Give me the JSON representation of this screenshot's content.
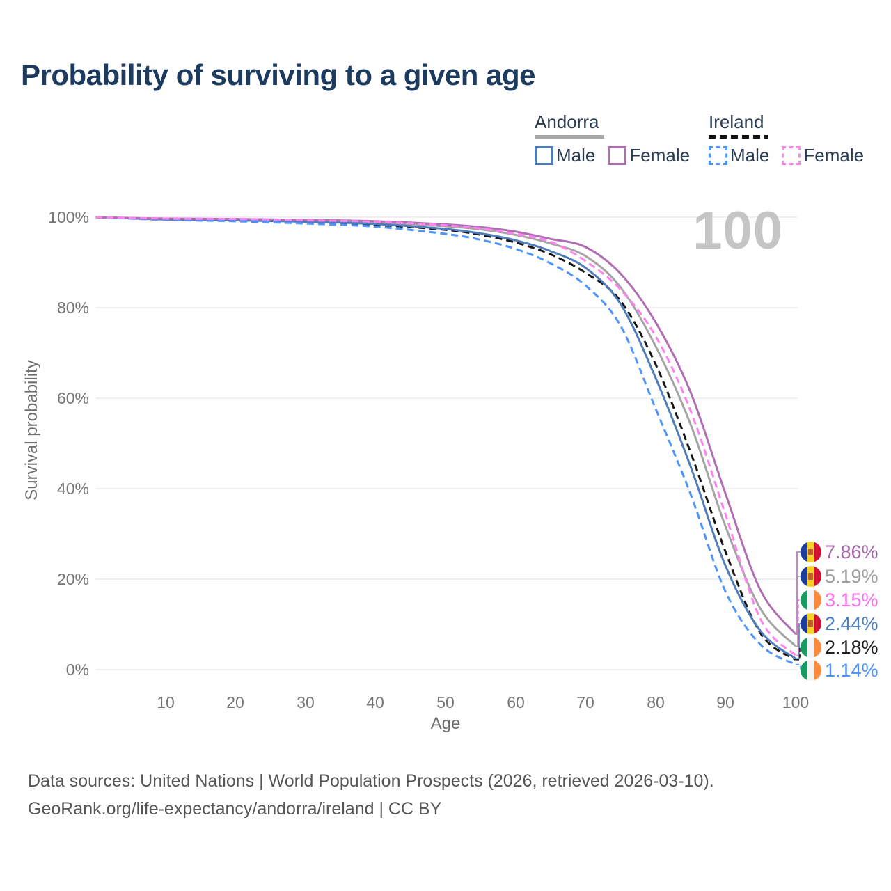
{
  "title": "Probability of surviving to a given age",
  "watermark": {
    "text": "100"
  },
  "legend": {
    "groups": [
      {
        "label": "Andorra",
        "line_style": "solid",
        "underline_color": "#a8a8a8",
        "items": [
          {
            "label": "Male",
            "color": "#4f7dbb"
          },
          {
            "label": "Female",
            "color": "#b16db4"
          }
        ]
      },
      {
        "label": "Ireland",
        "line_style": "dashed",
        "underline_color": "#141414",
        "items": [
          {
            "label": "Male",
            "color": "#4e95ff"
          },
          {
            "label": "Female",
            "color": "#ff82f0"
          }
        ]
      }
    ]
  },
  "axes": {
    "y_title": "Survival probability",
    "x_title": "Age",
    "y_ticks": [
      "100%",
      "80%",
      "60%",
      "40%",
      "20%",
      "0%"
    ],
    "x_ticks": [
      "10",
      "20",
      "30",
      "40",
      "50",
      "60",
      "70",
      "80",
      "90",
      "100"
    ]
  },
  "chart_data": {
    "type": "line",
    "title": "Probability of surviving to a given age",
    "xlabel": "Age",
    "ylabel": "Survival probability",
    "x_range": [
      0,
      100
    ],
    "y_range_percent": [
      0,
      100
    ],
    "grid": "horizontal",
    "legend_position": "top-right",
    "series": [
      {
        "id": "andorra-total",
        "name": "Andorra (both sexes)",
        "country": "andorra",
        "sex": "total",
        "style": "solid",
        "color": "#a4a4a4",
        "label_color": "#9e9e9e",
        "end_label": "5.19%",
        "points": [
          [
            0,
            100
          ],
          [
            10,
            99.6
          ],
          [
            20,
            99.5
          ],
          [
            30,
            99.2
          ],
          [
            40,
            98.8
          ],
          [
            50,
            98.0
          ],
          [
            55,
            97.3
          ],
          [
            60,
            96.1
          ],
          [
            65,
            94.2
          ],
          [
            70,
            91.4
          ],
          [
            75,
            84.5
          ],
          [
            80,
            71.5
          ],
          [
            85,
            54.2
          ],
          [
            90,
            31.6
          ],
          [
            95,
            13.4
          ],
          [
            100,
            5.19
          ]
        ]
      },
      {
        "id": "ireland-total",
        "name": "Ireland (both sexes)",
        "country": "ireland",
        "sex": "total",
        "style": "dashed",
        "color": "#161616",
        "label_color": "#1f1f1f",
        "end_label": "2.18%",
        "points": [
          [
            0,
            100
          ],
          [
            10,
            99.5
          ],
          [
            20,
            99.3
          ],
          [
            30,
            98.9
          ],
          [
            40,
            98.3
          ],
          [
            50,
            97.2
          ],
          [
            55,
            96.1
          ],
          [
            60,
            94.4
          ],
          [
            65,
            91.8
          ],
          [
            70,
            87.7
          ],
          [
            75,
            81.5
          ],
          [
            80,
            67.5
          ],
          [
            85,
            48.0
          ],
          [
            90,
            26.0
          ],
          [
            95,
            8.0
          ],
          [
            100,
            2.18
          ]
        ]
      },
      {
        "id": "andorra-male",
        "name": "Andorra Male",
        "country": "andorra",
        "sex": "male",
        "style": "solid",
        "color": "#4f7dbb",
        "label_color": "#4a7cc2",
        "end_label": "2.44%",
        "points": [
          [
            0,
            100
          ],
          [
            10,
            99.5
          ],
          [
            20,
            99.3
          ],
          [
            30,
            99.0
          ],
          [
            40,
            98.5
          ],
          [
            50,
            97.4
          ],
          [
            55,
            96.4
          ],
          [
            60,
            94.9
          ],
          [
            65,
            92.5
          ],
          [
            70,
            88.8
          ],
          [
            75,
            80.8
          ],
          [
            80,
            64.5
          ],
          [
            85,
            44.9
          ],
          [
            90,
            22.9
          ],
          [
            95,
            8.5
          ],
          [
            100,
            2.44
          ]
        ]
      },
      {
        "id": "ireland-male",
        "name": "Ireland Male",
        "country": "ireland",
        "sex": "male",
        "style": "dashed",
        "color": "#4e95ff",
        "label_color": "#4b90ff",
        "end_label": "1.14%",
        "points": [
          [
            0,
            100
          ],
          [
            10,
            99.4
          ],
          [
            20,
            99.1
          ],
          [
            30,
            98.6
          ],
          [
            40,
            97.9
          ],
          [
            50,
            96.3
          ],
          [
            55,
            95.0
          ],
          [
            60,
            93.0
          ],
          [
            65,
            89.8
          ],
          [
            70,
            84.9
          ],
          [
            75,
            76.0
          ],
          [
            80,
            57.7
          ],
          [
            85,
            38.8
          ],
          [
            90,
            17.2
          ],
          [
            95,
            5.5
          ],
          [
            100,
            1.14
          ]
        ]
      },
      {
        "id": "andorra-female",
        "name": "Andorra Female",
        "country": "andorra",
        "sex": "female",
        "style": "solid",
        "color": "#b16db4",
        "label_color": "#a564ab",
        "end_label": "7.86%",
        "points": [
          [
            0,
            100
          ],
          [
            10,
            99.7
          ],
          [
            20,
            99.6
          ],
          [
            30,
            99.4
          ],
          [
            40,
            99.1
          ],
          [
            50,
            98.4
          ],
          [
            55,
            97.8
          ],
          [
            60,
            96.8
          ],
          [
            65,
            95.2
          ],
          [
            70,
            93.4
          ],
          [
            75,
            87.5
          ],
          [
            80,
            76.8
          ],
          [
            85,
            61.3
          ],
          [
            90,
            38.8
          ],
          [
            95,
            17.5
          ],
          [
            100,
            7.86
          ]
        ]
      },
      {
        "id": "ireland-female",
        "name": "Ireland Female",
        "country": "ireland",
        "sex": "female",
        "style": "dashed",
        "color": "#ff82f0",
        "label_color": "#fc6cf2",
        "end_label": "3.15%",
        "points": [
          [
            0,
            100
          ],
          [
            10,
            99.7
          ],
          [
            20,
            99.6
          ],
          [
            30,
            99.3
          ],
          [
            40,
            99.0
          ],
          [
            50,
            98.2
          ],
          [
            55,
            97.5
          ],
          [
            60,
            96.3
          ],
          [
            65,
            94.6
          ],
          [
            70,
            90.3
          ],
          [
            75,
            84.0
          ],
          [
            80,
            73.7
          ],
          [
            85,
            57.2
          ],
          [
            90,
            34.2
          ],
          [
            95,
            11.1
          ],
          [
            100,
            3.15
          ]
        ]
      }
    ]
  },
  "flags": {
    "andorra": {
      "stripes": [
        "#1b3e9e",
        "#f8d021",
        "#d31034"
      ],
      "emblem": true,
      "emblem_color": "#c75b2a"
    },
    "ireland": {
      "stripes": [
        "#169b62",
        "#f4f4f4",
        "#ff8a3c"
      ],
      "emblem": false
    }
  },
  "colors": {
    "title": "#1d3a5f",
    "axis_text": "#757575",
    "gridline": "#e8e8e8",
    "watermark": "#c5c5c5",
    "footer_text": "#565656"
  },
  "footer": {
    "line1": "Data sources: United Nations | World Population Prospects (2026, retrieved 2026-03-10).",
    "line2": "GeoRank.org/life-expectancy/andorra/ireland | CC BY"
  }
}
